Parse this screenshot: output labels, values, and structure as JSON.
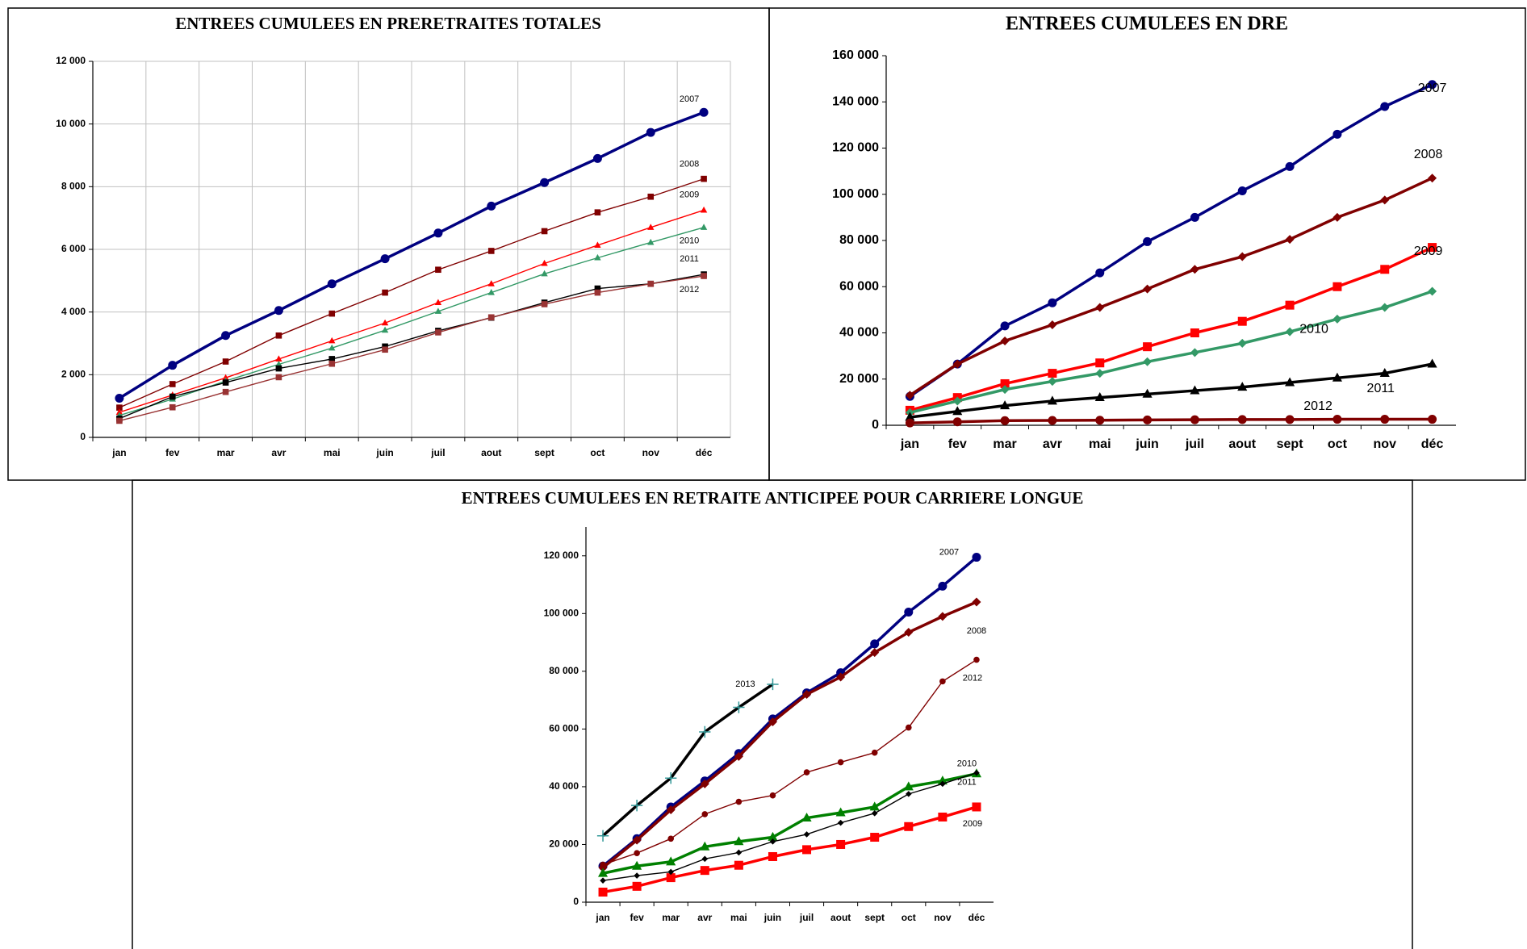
{
  "chart_data": [
    {
      "type": "line",
      "title": "ENTREES CUMULEES EN PRERETRAITES TOTALES",
      "categories": [
        "jan",
        "fev",
        "mar",
        "avr",
        "mai",
        "juin",
        "juil",
        "aout",
        "sept",
        "oct",
        "nov",
        "déc"
      ],
      "ylim": [
        0,
        12000
      ],
      "yticks": [
        0,
        {
          "value": 2000,
          "label": "2 000"
        },
        {
          "value": 4000,
          "label": "4 000"
        },
        {
          "value": 6000,
          "label": "6 000"
        },
        {
          "value": 8000,
          "label": "8 000"
        },
        {
          "value": 10000,
          "label": "10 000"
        },
        {
          "value": 12000,
          "label": "12 000"
        }
      ],
      "grid": true,
      "series": [
        {
          "name": "2007",
          "color": "#000080",
          "marker": "circle",
          "weight": "bold",
          "values": [
            1250,
            2300,
            3250,
            4050,
            4900,
            5700,
            6520,
            7380,
            8130,
            8900,
            9730,
            10370
          ]
        },
        {
          "name": "2008",
          "color": "#800000",
          "marker": "square",
          "weight": "normal",
          "values": [
            950,
            1700,
            2420,
            3250,
            3950,
            4620,
            5350,
            5950,
            6580,
            7180,
            7680,
            8250
          ]
        },
        {
          "name": "2009",
          "color": "#ff0000",
          "marker": "triangle",
          "weight": "normal",
          "values": [
            800,
            1350,
            1900,
            2500,
            3080,
            3650,
            4300,
            4900,
            5550,
            6130,
            6700,
            7250
          ]
        },
        {
          "name": "2010",
          "color": "#339966",
          "marker": "triangle",
          "weight": "normal",
          "values": [
            700,
            1220,
            1800,
            2330,
            2850,
            3420,
            4020,
            4620,
            5220,
            5730,
            6220,
            6700
          ]
        },
        {
          "name": "2011",
          "color": "#000000",
          "marker": "square",
          "weight": "normal",
          "values": [
            600,
            1300,
            1750,
            2200,
            2500,
            2900,
            3400,
            3820,
            4300,
            4750,
            4900,
            5200
          ]
        },
        {
          "name": "2012",
          "color": "#993333",
          "marker": "square",
          "weight": "normal",
          "values": [
            530,
            960,
            1450,
            1920,
            2350,
            2800,
            3350,
            3830,
            4250,
            4620,
            4900,
            5150
          ]
        }
      ]
    },
    {
      "type": "line",
      "title": "ENTREES CUMULEES EN DRE",
      "categories": [
        "jan",
        "fev",
        "mar",
        "avr",
        "mai",
        "juin",
        "juil",
        "aout",
        "sept",
        "oct",
        "nov",
        "déc"
      ],
      "ylim": [
        0,
        160000
      ],
      "yticks": [
        0,
        {
          "value": 20000,
          "label": "20 000"
        },
        {
          "value": 40000,
          "label": "40 000"
        },
        {
          "value": 60000,
          "label": "60 000"
        },
        {
          "value": 80000,
          "label": "80 000"
        },
        {
          "value": 100000,
          "label": "100 000"
        },
        {
          "value": 120000,
          "label": "120 000"
        },
        {
          "value": 140000,
          "label": "140 000"
        },
        {
          "value": 160000,
          "label": "160 000"
        }
      ],
      "grid": false,
      "series": [
        {
          "name": "2007",
          "color": "#000080",
          "marker": "circle",
          "weight": "bold",
          "values": [
            12500,
            26500,
            43000,
            53000,
            66000,
            79500,
            90000,
            101500,
            112000,
            126000,
            138000,
            147500
          ]
        },
        {
          "name": "2008",
          "color": "#800000",
          "marker": "diamond",
          "weight": "bold",
          "values": [
            13000,
            26500,
            36500,
            43500,
            51000,
            59000,
            67500,
            73000,
            80500,
            90000,
            97500,
            107000
          ]
        },
        {
          "name": "2009",
          "color": "#ff0000",
          "marker": "square",
          "weight": "bold",
          "values": [
            6500,
            12000,
            18000,
            22500,
            27000,
            34000,
            40000,
            45000,
            52000,
            60000,
            67500,
            77000
          ]
        },
        {
          "name": "2010",
          "color": "#339966",
          "marker": "diamond",
          "weight": "bold",
          "values": [
            5500,
            10500,
            15500,
            19000,
            22500,
            27500,
            31500,
            35500,
            40500,
            46000,
            51000,
            58000
          ]
        },
        {
          "name": "2011",
          "color": "#000000",
          "marker": "triangle",
          "weight": "bold",
          "values": [
            3500,
            6000,
            8500,
            10500,
            12000,
            13500,
            15000,
            16500,
            18500,
            20500,
            22500,
            26500
          ]
        },
        {
          "name": "2012",
          "color": "#800000",
          "marker": "circle",
          "weight": "bold",
          "values": [
            1000,
            1500,
            2000,
            2100,
            2200,
            2300,
            2400,
            2500,
            2500,
            2600,
            2600,
            2600
          ]
        }
      ]
    },
    {
      "type": "line",
      "title": "ENTREES CUMULEES EN RETRAITE ANTICIPEE POUR CARRIERE LONGUE",
      "categories": [
        "jan",
        "fev",
        "mar",
        "avr",
        "mai",
        "juin",
        "juil",
        "aout",
        "sept",
        "oct",
        "nov",
        "déc"
      ],
      "ylim": [
        0,
        130000
      ],
      "yticks": [
        0,
        {
          "value": 20000,
          "label": "20 000"
        },
        {
          "value": 40000,
          "label": "40 000"
        },
        {
          "value": 60000,
          "label": "60 000"
        },
        {
          "value": 80000,
          "label": "80 000"
        },
        {
          "value": 100000,
          "label": "100 000"
        },
        {
          "value": 120000,
          "label": "120 000"
        }
      ],
      "grid": false,
      "series": [
        {
          "name": "2007",
          "color": "#000080",
          "marker": "circle",
          "weight": "bold",
          "values": [
            12500,
            22000,
            33000,
            42000,
            51500,
            63500,
            72500,
            79500,
            89500,
            100500,
            109500,
            119500
          ]
        },
        {
          "name": "2008",
          "color": "#800000",
          "marker": "diamond",
          "weight": "bold",
          "values": [
            12000,
            21500,
            32000,
            41000,
            50500,
            62500,
            72000,
            78000,
            86500,
            93500,
            99000,
            104000
          ]
        },
        {
          "name": "2009",
          "color": "#ff0000",
          "marker": "square",
          "weight": "bold",
          "values": [
            3500,
            5500,
            8500,
            11000,
            12800,
            15800,
            18200,
            20000,
            22500,
            26200,
            29500,
            33000
          ]
        },
        {
          "name": "2010",
          "color": "#008000",
          "marker": "triangle",
          "weight": "bold",
          "values": [
            10000,
            12500,
            14000,
            19200,
            21000,
            22500,
            29200,
            31000,
            33000,
            40000,
            42000,
            44500
          ]
        },
        {
          "name": "2011",
          "color": "#000000",
          "marker": "diamond",
          "weight": "normal",
          "values": [
            7500,
            9200,
            10500,
            15000,
            17200,
            21000,
            23500,
            27500,
            30800,
            37500,
            41000,
            44800
          ]
        },
        {
          "name": "2012",
          "color": "#800000",
          "marker": "circle",
          "weight": "normal",
          "values": [
            13000,
            17000,
            22000,
            30500,
            34800,
            37000,
            45000,
            48500,
            51800,
            60500,
            76500,
            84000
          ]
        },
        {
          "name": "2013",
          "color": "#000000",
          "marker": "plus",
          "weight": "bold",
          "values": [
            23000,
            33500,
            43000,
            59000,
            67500,
            75500,
            null,
            null,
            null,
            null,
            null,
            null
          ]
        }
      ]
    }
  ]
}
